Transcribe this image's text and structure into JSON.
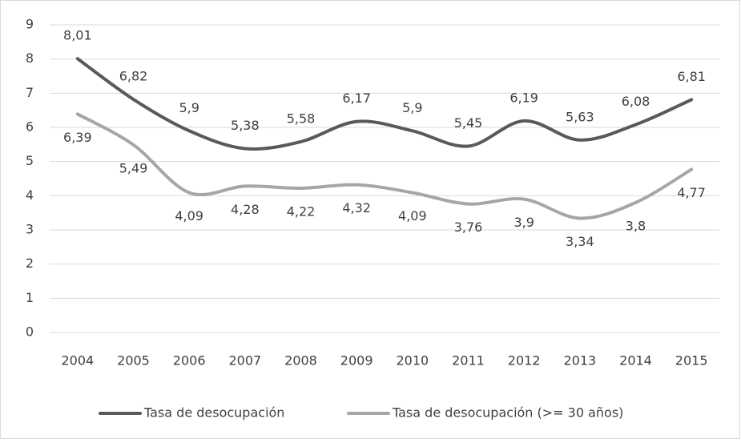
{
  "chart_data": {
    "type": "line",
    "categories": [
      "2004",
      "2005",
      "2006",
      "2007",
      "2008",
      "2009",
      "2010",
      "2011",
      "2012",
      "2013",
      "2014",
      "2015"
    ],
    "series": [
      {
        "name": "Tasa de desocupación",
        "color": "#595959",
        "values": [
          8.01,
          6.82,
          5.9,
          5.38,
          5.58,
          6.17,
          5.9,
          5.45,
          6.19,
          5.63,
          6.08,
          6.81
        ],
        "value_labels": [
          "8,01",
          "6,82",
          "5,9",
          "5,38",
          "5,58",
          "6,17",
          "5,9",
          "5,45",
          "6,19",
          "5,63",
          "6,08",
          "6,81"
        ]
      },
      {
        "name": "Tasa de desocupación (>= 30 años)",
        "color": "#a6a6a6",
        "values": [
          6.39,
          5.49,
          4.09,
          4.28,
          4.22,
          4.32,
          4.09,
          3.76,
          3.9,
          3.34,
          3.8,
          4.77
        ],
        "value_labels": [
          "6,39",
          "5,49",
          "4,09",
          "4,28",
          "4,22",
          "4,32",
          "4,09",
          "3,76",
          "3,9",
          "3,34",
          "3,8",
          "4,77"
        ]
      }
    ],
    "ylim": [
      0,
      9
    ],
    "yticks": [
      0,
      1,
      2,
      3,
      4,
      5,
      6,
      7,
      8,
      9
    ],
    "grid": true,
    "smooth": true,
    "legend": "bottom"
  }
}
